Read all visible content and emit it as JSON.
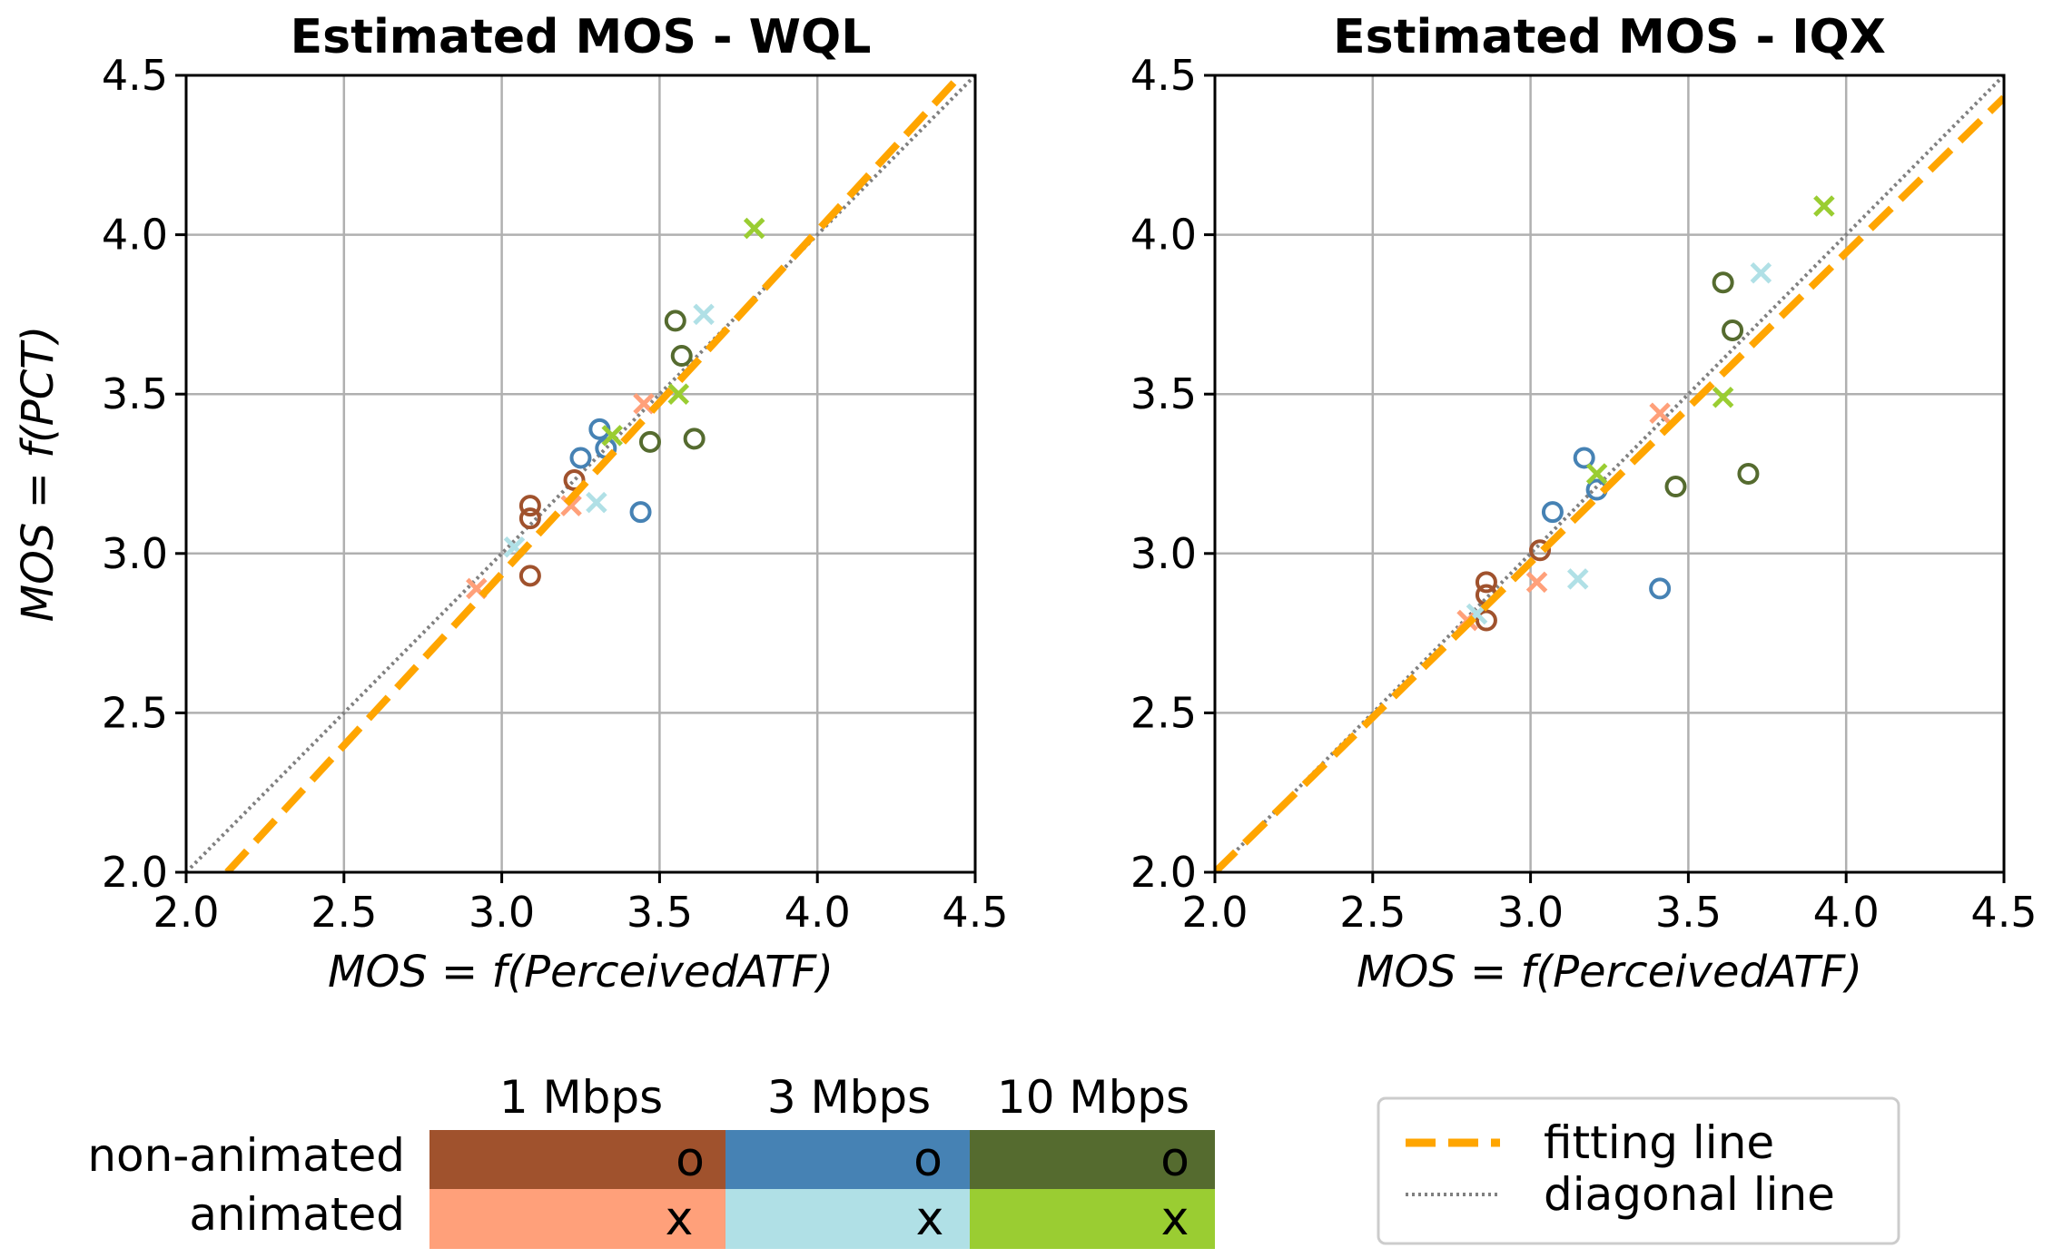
{
  "chart_data": [
    {
      "type": "scatter",
      "title": "Estimated MOS - WQL",
      "xlabel": "MOS = f(PerceivedATF)",
      "ylabel": "MOS = f(PCT)",
      "xlim": [
        2.0,
        4.5
      ],
      "ylim": [
        2.0,
        4.5
      ],
      "xticks": [
        "2.0",
        "2.5",
        "3.0",
        "3.5",
        "4.0",
        "4.5"
      ],
      "yticks": [
        "2.0",
        "2.5",
        "3.0",
        "3.5",
        "4.0",
        "4.5"
      ],
      "grid": true,
      "fitting_line": [
        [
          2.13,
          2.0
        ],
        [
          4.5,
          4.55
        ]
      ],
      "diagonal_line": [
        [
          2.0,
          2.0
        ],
        [
          4.5,
          4.5
        ]
      ],
      "series": [
        {
          "name": "1 Mbps non-animated",
          "color": "#A0522D",
          "marker": "o",
          "points": [
            [
              3.09,
              3.15
            ],
            [
              3.09,
              3.11
            ],
            [
              3.09,
              2.93
            ],
            [
              3.23,
              3.23
            ]
          ]
        },
        {
          "name": "1 Mbps animated",
          "color": "#FFA07A",
          "marker": "x",
          "points": [
            [
              2.92,
              2.89
            ],
            [
              3.22,
              3.15
            ],
            [
              3.45,
              3.47
            ]
          ]
        },
        {
          "name": "3 Mbps non-animated",
          "color": "#4682B4",
          "marker": "o",
          "points": [
            [
              3.31,
              3.39
            ],
            [
              3.25,
              3.3
            ],
            [
              3.33,
              3.33
            ],
            [
              3.44,
              3.13
            ]
          ]
        },
        {
          "name": "3 Mbps animated",
          "color": "#B0E0E6",
          "marker": "x",
          "points": [
            [
              3.04,
              3.02
            ],
            [
              3.3,
              3.16
            ],
            [
              3.64,
              3.75
            ]
          ]
        },
        {
          "name": "10 Mbps non-animated",
          "color": "#556B2F",
          "marker": "o",
          "points": [
            [
              3.55,
              3.73
            ],
            [
              3.57,
              3.62
            ],
            [
              3.47,
              3.35
            ],
            [
              3.61,
              3.36
            ]
          ]
        },
        {
          "name": "10 Mbps animated",
          "color": "#9ACD32",
          "marker": "x",
          "points": [
            [
              3.35,
              3.37
            ],
            [
              3.56,
              3.5
            ],
            [
              3.8,
              4.02
            ]
          ]
        }
      ]
    },
    {
      "type": "scatter",
      "title": "Estimated MOS - IQX",
      "xlabel": "MOS = f(PerceivedATF)",
      "ylabel": "",
      "xlim": [
        2.0,
        4.5
      ],
      "ylim": [
        2.0,
        4.5
      ],
      "xticks": [
        "2.0",
        "2.5",
        "3.0",
        "3.5",
        "4.0",
        "4.5"
      ],
      "yticks": [
        "2.0",
        "2.5",
        "3.0",
        "3.5",
        "4.0",
        "4.5"
      ],
      "grid": true,
      "fitting_line": [
        [
          2.0,
          2.0
        ],
        [
          4.5,
          4.43
        ]
      ],
      "diagonal_line": [
        [
          2.0,
          2.0
        ],
        [
          4.5,
          4.5
        ]
      ],
      "series": [
        {
          "name": "1 Mbps non-animated",
          "color": "#A0522D",
          "marker": "o",
          "points": [
            [
              2.86,
              2.91
            ],
            [
              2.86,
              2.87
            ],
            [
              2.86,
              2.79
            ],
            [
              3.03,
              3.01
            ]
          ]
        },
        {
          "name": "1 Mbps animated",
          "color": "#FFA07A",
          "marker": "x",
          "points": [
            [
              2.8,
              2.79
            ],
            [
              3.02,
              2.91
            ],
            [
              3.41,
              3.44
            ]
          ]
        },
        {
          "name": "3 Mbps non-animated",
          "color": "#4682B4",
          "marker": "o",
          "points": [
            [
              3.17,
              3.3
            ],
            [
              3.07,
              3.13
            ],
            [
              3.21,
              3.2
            ],
            [
              3.41,
              2.89
            ]
          ]
        },
        {
          "name": "3 Mbps animated",
          "color": "#B0E0E6",
          "marker": "x",
          "points": [
            [
              2.83,
              2.81
            ],
            [
              3.15,
              2.92
            ],
            [
              3.73,
              3.88
            ]
          ]
        },
        {
          "name": "10 Mbps non-animated",
          "color": "#556B2F",
          "marker": "o",
          "points": [
            [
              3.61,
              3.85
            ],
            [
              3.64,
              3.7
            ],
            [
              3.46,
              3.21
            ],
            [
              3.69,
              3.25
            ]
          ]
        },
        {
          "name": "10 Mbps animated",
          "color": "#9ACD32",
          "marker": "x",
          "points": [
            [
              3.21,
              3.25
            ],
            [
              3.61,
              3.49
            ],
            [
              3.93,
              4.09
            ]
          ]
        }
      ]
    }
  ],
  "legend_table": {
    "columns": [
      "1 Mbps",
      "3 Mbps",
      "10 Mbps"
    ],
    "rows": [
      {
        "label": "non-animated",
        "symbol": "o",
        "colors": [
          "#A0522D",
          "#4682B4",
          "#556B2F"
        ]
      },
      {
        "label": "animated",
        "symbol": "x",
        "colors": [
          "#FFA07A",
          "#B0E0E6",
          "#9ACD32"
        ]
      }
    ]
  },
  "line_legend": {
    "fitting": {
      "label": "fitting line",
      "color": "#FFA500"
    },
    "diagonal": {
      "label": "diagonal line",
      "color": "#808080"
    }
  }
}
